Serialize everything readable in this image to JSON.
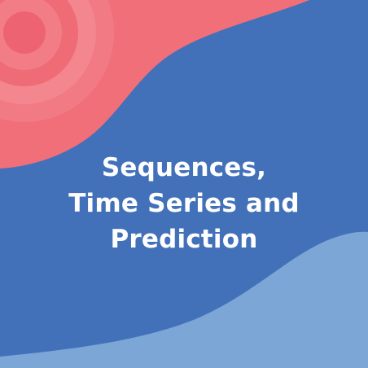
{
  "course": {
    "title_lines": [
      "Sequences,",
      "Time Series and",
      "Prediction"
    ]
  },
  "colors": {
    "background_blue": "#4271b9",
    "coral": "#f16f79",
    "coral_ring_light": "#f4828c",
    "coral_ring_dark": "#ee6573",
    "light_blue": "#7ba6d6",
    "text": "#ffffff"
  }
}
